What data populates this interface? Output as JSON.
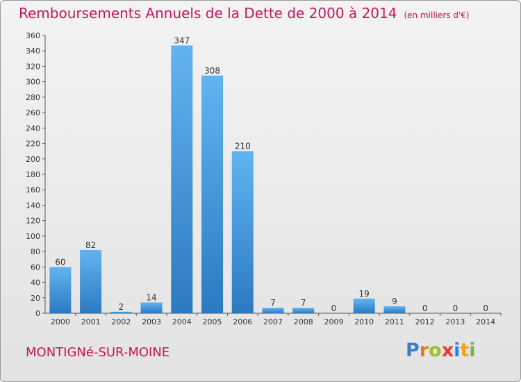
{
  "header": {
    "title": "Remboursements Annuels de la Dette de 2000 à 2014",
    "unit": "(en milliers d'€)"
  },
  "footer": {
    "commune": "MONTIGNé-SUR-MOINE",
    "logo_letters": [
      "P",
      "r",
      "o",
      "x",
      "i",
      "t",
      "i"
    ],
    "logo_colors": [
      "#3a7fc4",
      "#e07b1f",
      "#9bc31f",
      "#e53935",
      "#1e88e5",
      "#f4a01c",
      "#7cb342"
    ]
  },
  "colors": {
    "bar": "#3d8fd6",
    "bar_light": "#5fb0ee",
    "bar_dark": "#2a78c0",
    "title": "#c2185b"
  },
  "chart_data": {
    "type": "bar",
    "title": "Remboursements Annuels de la Dette de 2000 à 2014",
    "subtitle": "(en milliers d'€)",
    "xlabel": "",
    "ylabel": "",
    "categories": [
      "2000",
      "2001",
      "2002",
      "2003",
      "2004",
      "2005",
      "2006",
      "2007",
      "2008",
      "2009",
      "2010",
      "2011",
      "2012",
      "2013",
      "2014"
    ],
    "values": [
      60,
      82,
      2,
      14,
      347,
      308,
      210,
      7,
      7,
      0,
      19,
      9,
      0,
      0,
      0
    ],
    "value_labels": [
      "60",
      "82",
      "2",
      "14",
      "347",
      "308",
      "210",
      "7",
      "7",
      "0",
      "19",
      "9",
      "0",
      "0",
      "0"
    ],
    "ylim": [
      0,
      360
    ],
    "yticks": [
      0,
      20,
      40,
      60,
      80,
      100,
      120,
      140,
      160,
      180,
      200,
      220,
      240,
      260,
      280,
      300,
      320,
      340,
      360
    ],
    "grid": false,
    "legend": "none"
  }
}
